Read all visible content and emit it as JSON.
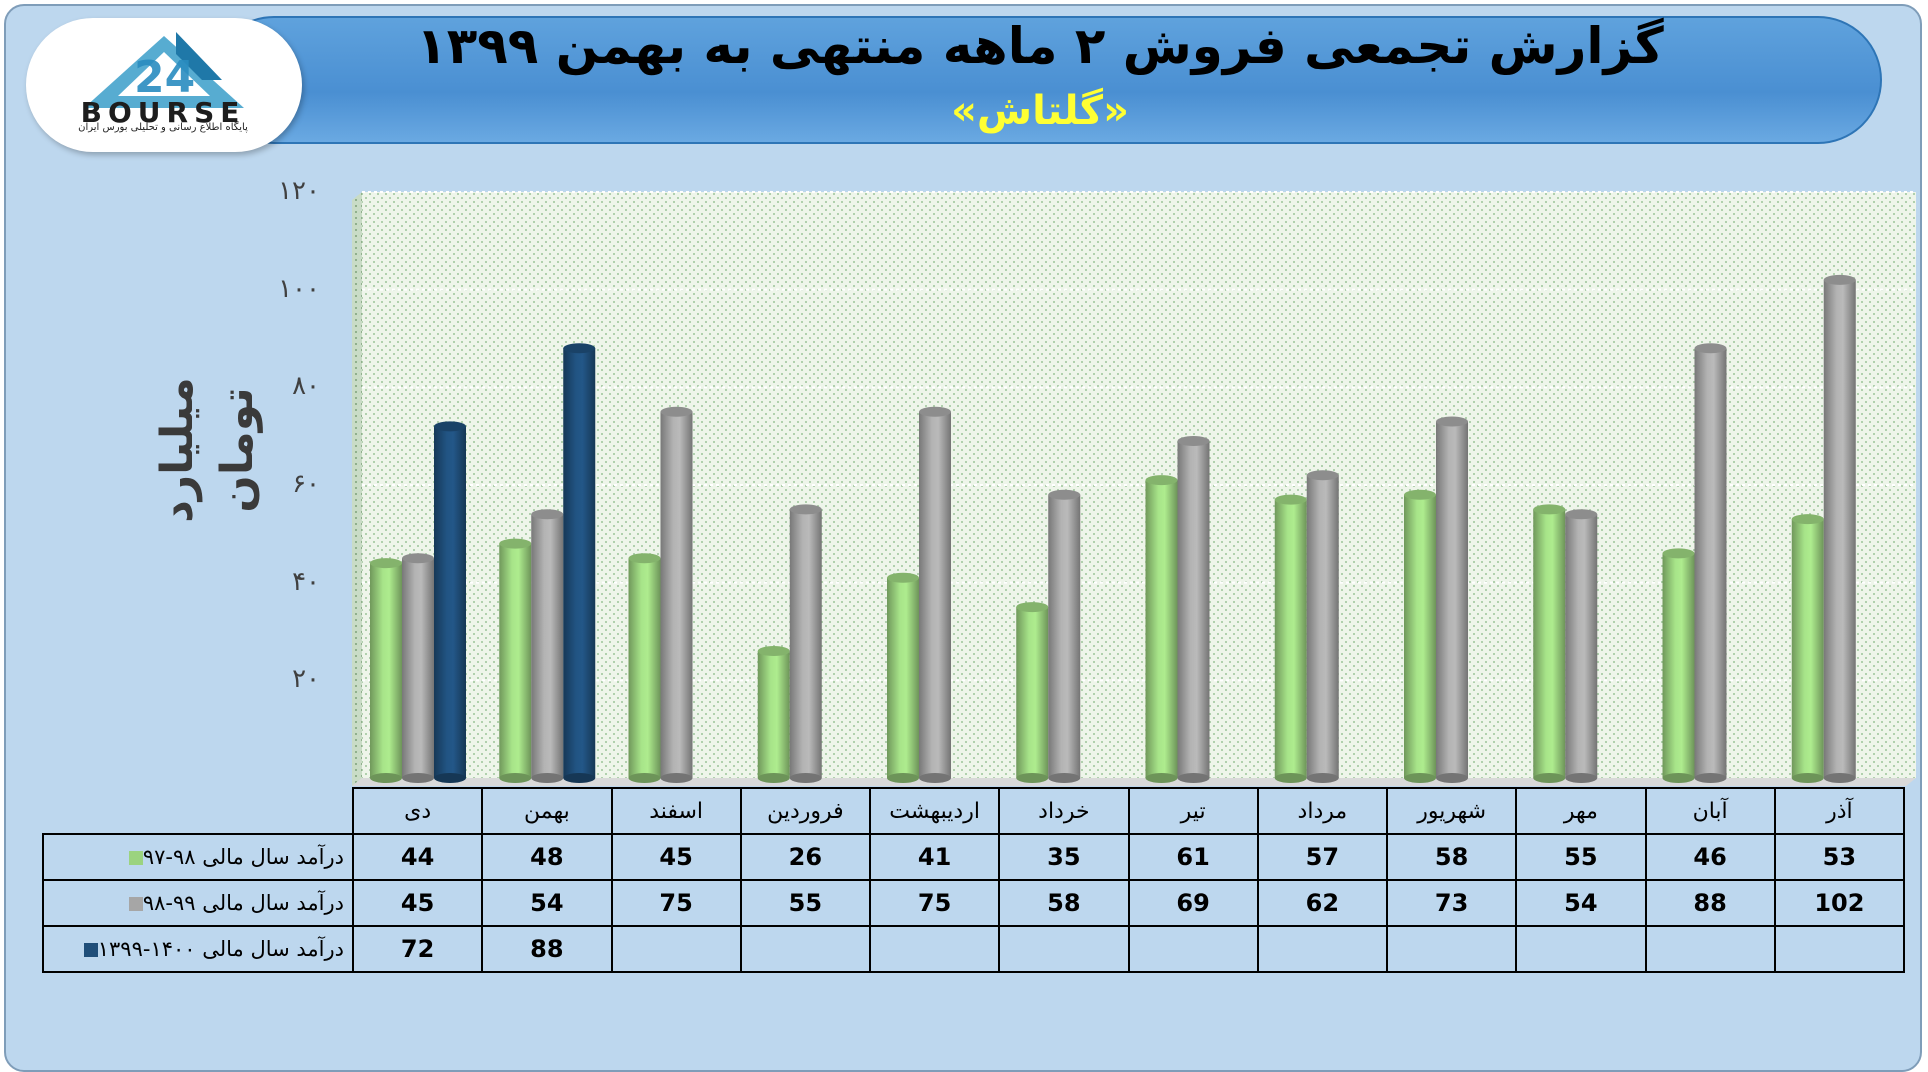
{
  "header": {
    "title": "گزارش تجمعی فروش ۲ ماهه منتهی به بهمن ۱۳۹۹",
    "subtitle": "«گلتاش»"
  },
  "logo": {
    "text": "BOURSE",
    "subtext": "پایگاه اطلاع رسانی و تحلیلی بورس ایران",
    "icon": "24-bourse-logo-icon"
  },
  "colors": {
    "series_1": "#9bd37f",
    "series_2": "#a6a6a6",
    "series_3": "#1f4e79",
    "plot_bg": "#eaf3e6",
    "frame_bg": "#bdd7ee",
    "header_bg": "#5b9bd5"
  },
  "chart_data": {
    "type": "bar",
    "title": "گزارش تجمعی فروش ۲ ماهه منتهی به بهمن ۱۳۹۹",
    "subtitle": "«گلتاش»",
    "ylabel": "میلیارد تومان",
    "xlabel": "",
    "ylim": [
      0,
      120
    ],
    "yticks": [
      20,
      40,
      60,
      80,
      100,
      120
    ],
    "ytick_labels": [
      "۲۰",
      "۴۰",
      "۶۰",
      "۸۰",
      "۱۰۰",
      "۱۲۰"
    ],
    "grid": true,
    "legend_position": "table-left",
    "categories": [
      "دی",
      "بهمن",
      "اسفند",
      "فروردین",
      "اردیبهشت",
      "خرداد",
      "تیر",
      "مرداد",
      "شهریور",
      "مهر",
      "آبان",
      "آذر"
    ],
    "series": [
      {
        "name": "درآمد سال مالی ۹۸-۹۷",
        "color": "#9bd37f",
        "values": [
          44,
          48,
          45,
          26,
          41,
          35,
          61,
          57,
          58,
          55,
          46,
          53
        ]
      },
      {
        "name": "درآمد سال مالی ۹۹-۹۸",
        "color": "#a6a6a6",
        "values": [
          45,
          54,
          75,
          55,
          75,
          58,
          69,
          62,
          73,
          54,
          88,
          102
        ]
      },
      {
        "name": "درآمد سال مالی ۱۴۰۰-۱۳۹۹",
        "color": "#1f4e79",
        "values": [
          72,
          88,
          null,
          null,
          null,
          null,
          null,
          null,
          null,
          null,
          null,
          null
        ]
      }
    ]
  }
}
